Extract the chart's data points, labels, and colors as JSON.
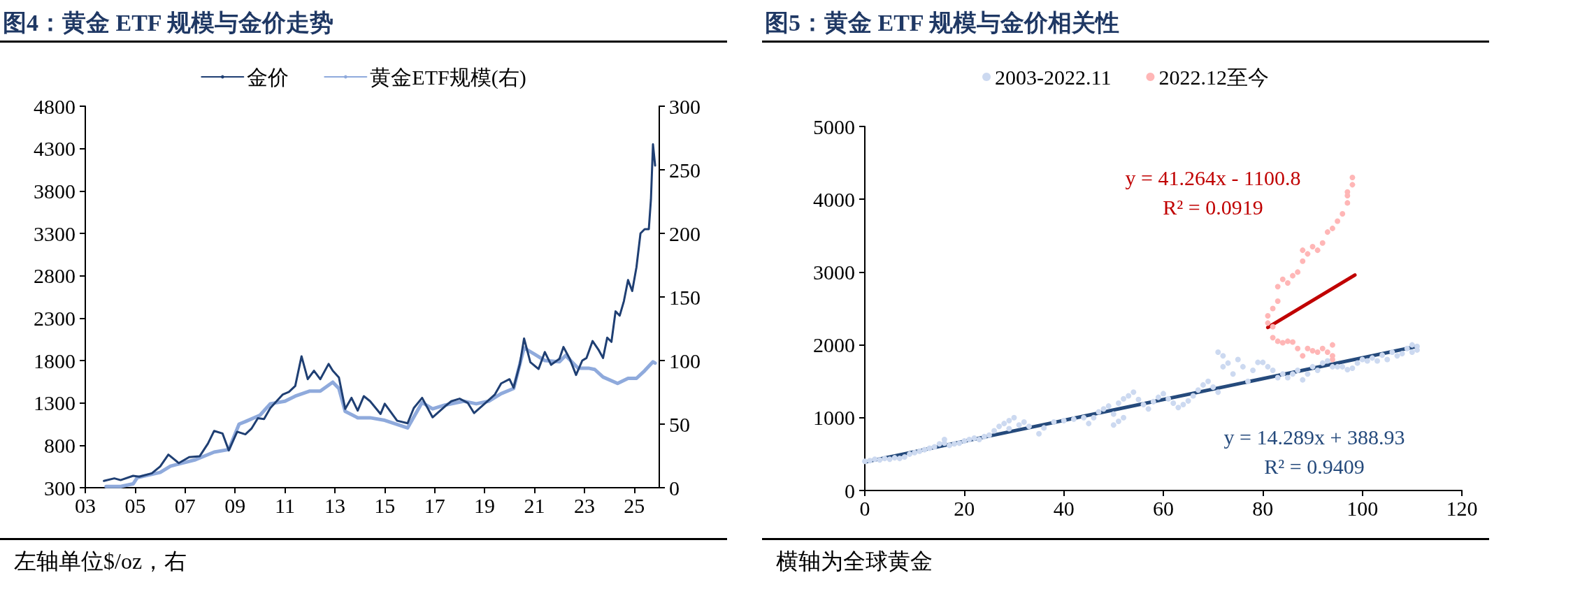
{
  "chart_data": [
    {
      "type": "line",
      "title": "图4：黄金 ETF 规模与金价走势",
      "legend": "top",
      "marker": "none",
      "grid": false,
      "annotations": [
        "左轴单位$/oz，右"
      ],
      "xlim": [
        "2003-01",
        "2026-01"
      ],
      "xticks": [
        {
          "value": "2003",
          "label": "03"
        },
        {
          "value": "2005",
          "label": "05"
        },
        {
          "value": "2007",
          "label": "07"
        },
        {
          "value": "2009",
          "label": "09"
        },
        {
          "value": "2011",
          "label": "11"
        },
        {
          "value": "2013",
          "label": "13"
        },
        {
          "value": "2015",
          "label": "15"
        },
        {
          "value": "2017",
          "label": "17"
        },
        {
          "value": "2019",
          "label": "19"
        },
        {
          "value": "2021",
          "label": "21"
        },
        {
          "value": "2023",
          "label": "23"
        },
        {
          "value": "2025",
          "label": "25"
        }
      ],
      "ylim": [
        300,
        4800
      ],
      "yticks": [
        300,
        800,
        1300,
        1800,
        2300,
        2800,
        3300,
        3800,
        4300,
        4800
      ],
      "y2lim": [
        0,
        300
      ],
      "y2ticks": [
        0,
        50,
        100,
        150,
        200,
        250,
        300
      ],
      "series": [
        {
          "name": "金价",
          "color": "#1f3f73",
          "x": [
            "2003-10",
            "2004-03",
            "2004-06",
            "2004-12",
            "2005-03",
            "2005-09",
            "2006-01",
            "2006-05",
            "2006-10",
            "2007-03",
            "2007-08",
            "2007-12",
            "2008-03",
            "2008-07",
            "2008-10",
            "2009-02",
            "2009-06",
            "2009-09",
            "2009-12",
            "2010-03",
            "2010-06",
            "2010-12",
            "2011-03",
            "2011-06",
            "2011-09",
            "2011-12",
            "2012-03",
            "2012-06",
            "2012-10",
            "2012-12",
            "2013-03",
            "2013-06",
            "2013-09",
            "2013-12",
            "2014-03",
            "2014-06",
            "2014-11",
            "2015-01",
            "2015-07",
            "2015-12",
            "2016-03",
            "2016-07",
            "2016-12",
            "2017-06",
            "2017-09",
            "2018-01",
            "2018-05",
            "2018-08",
            "2019-01",
            "2019-06",
            "2019-09",
            "2020-01",
            "2020-03",
            "2020-06",
            "2020-08",
            "2020-11",
            "2021-03",
            "2021-06",
            "2021-09",
            "2022-01",
            "2022-03",
            "2022-06",
            "2022-09",
            "2022-12",
            "2023-02",
            "2023-05",
            "2023-08",
            "2023-10",
            "2023-12",
            "2024-02",
            "2024-04",
            "2024-06",
            "2024-08",
            "2024-10",
            "2024-12",
            "2025-02",
            "2025-04",
            "2025-06",
            "2025-08",
            "2025-09",
            "2025-10",
            "2025-11"
          ],
          "values": [
            380,
            410,
            390,
            440,
            430,
            470,
            550,
            690,
            590,
            660,
            670,
            820,
            970,
            940,
            740,
            960,
            930,
            1000,
            1120,
            1110,
            1240,
            1400,
            1430,
            1500,
            1850,
            1580,
            1680,
            1580,
            1760,
            1680,
            1600,
            1230,
            1360,
            1210,
            1380,
            1320,
            1170,
            1290,
            1090,
            1060,
            1240,
            1360,
            1130,
            1260,
            1320,
            1350,
            1300,
            1180,
            1290,
            1400,
            1530,
            1580,
            1480,
            1760,
            2060,
            1780,
            1700,
            1900,
            1750,
            1820,
            1960,
            1820,
            1630,
            1800,
            1830,
            2030,
            1920,
            1830,
            2070,
            2020,
            2380,
            2330,
            2500,
            2750,
            2620,
            2900,
            3300,
            3350,
            3350,
            3700,
            4350,
            4100
          ]
        },
        {
          "name": "黄金ETF规模(右)",
          "color": "#8faadc",
          "axis": "y2",
          "x": [
            "2003-11",
            "2004-06",
            "2004-12",
            "2005-02",
            "2006-01",
            "2006-06",
            "2007-06",
            "2008-03",
            "2008-10",
            "2009-03",
            "2009-06",
            "2010-01",
            "2010-06",
            "2011-01",
            "2011-06",
            "2012-01",
            "2012-06",
            "2012-12",
            "2013-03",
            "2013-06",
            "2013-12",
            "2014-06",
            "2015-01",
            "2015-12",
            "2016-07",
            "2016-12",
            "2017-06",
            "2018-03",
            "2018-09",
            "2019-03",
            "2019-09",
            "2020-03",
            "2020-08",
            "2021-01",
            "2021-06",
            "2022-01",
            "2022-04",
            "2022-10",
            "2023-03",
            "2023-06",
            "2023-10",
            "2024-05",
            "2024-10",
            "2025-02",
            "2025-06",
            "2025-10",
            "2025-11"
          ],
          "values": [
            1,
            1,
            3,
            8,
            12,
            17,
            22,
            28,
            30,
            50,
            52,
            57,
            66,
            68,
            72,
            76,
            76,
            83,
            78,
            60,
            55,
            55,
            53,
            47,
            67,
            62,
            65,
            68,
            66,
            68,
            74,
            78,
            110,
            105,
            100,
            99,
            104,
            94,
            94,
            93,
            87,
            82,
            86,
            86,
            92,
            99,
            98
          ]
        }
      ]
    },
    {
      "type": "scatter",
      "title": "图5：黄金 ETF 规模与金价相关性",
      "legend": "top",
      "marker": "circle",
      "grid": false,
      "annotations": [
        "横轴为全球黄金",
        "y = 41.264x - 1100.8",
        "R² = 0.0919",
        "y = 14.289x + 388.93",
        "R² = 0.9409"
      ],
      "xlim": [
        0,
        120
      ],
      "xticks": [
        0,
        20,
        40,
        60,
        80,
        100,
        120
      ],
      "ylim": [
        0,
        5000
      ],
      "yticks": [
        0,
        1000,
        2000,
        3000,
        4000,
        5000
      ],
      "series": [
        {
          "name": "2003-2022.11",
          "color": "#ccd9f0",
          "x": [
            0,
            1,
            2,
            3,
            4,
            5,
            6,
            7,
            8,
            9,
            10,
            11,
            12,
            13,
            14,
            15,
            16,
            16,
            17,
            18,
            19,
            20,
            21,
            22,
            23,
            24,
            25,
            26,
            27,
            28,
            29,
            30,
            29,
            31,
            32,
            33,
            35,
            36,
            38,
            40,
            42,
            44,
            45,
            46,
            47,
            48,
            49,
            50,
            50,
            51,
            52,
            51,
            52,
            53,
            54,
            55,
            56,
            57,
            58,
            59,
            60,
            61,
            62,
            63,
            64,
            65,
            66,
            67,
            68,
            69,
            70,
            71,
            72,
            71,
            72,
            73,
            74,
            75,
            76,
            77,
            78,
            79,
            80,
            81,
            82,
            83,
            84,
            85,
            86,
            87,
            88,
            89,
            90,
            91,
            92,
            93,
            94,
            95,
            96,
            97,
            98,
            99,
            100,
            101,
            102,
            103,
            104,
            105,
            106,
            107,
            108,
            109,
            110,
            111,
            111,
            110
          ],
          "values": [
            400,
            410,
            430,
            420,
            440,
            430,
            450,
            440,
            460,
            500,
            520,
            540,
            560,
            580,
            600,
            640,
            700,
            650,
            620,
            640,
            650,
            680,
            700,
            720,
            700,
            740,
            760,
            820,
            880,
            920,
            960,
            1000,
            850,
            900,
            940,
            880,
            780,
            860,
            940,
            960,
            980,
            1000,
            920,
            1000,
            1080,
            1120,
            1160,
            1050,
            900,
            950,
            1000,
            1200,
            1260,
            1300,
            1350,
            1250,
            1180,
            1120,
            1220,
            1280,
            1330,
            1260,
            1200,
            1140,
            1180,
            1230,
            1300,
            1380,
            1450,
            1500,
            1420,
            1350,
            1700,
            1900,
            1850,
            1750,
            1600,
            1800,
            1700,
            1500,
            1650,
            1760,
            1760,
            1700,
            1650,
            1550,
            1600,
            1550,
            1600,
            1650,
            1520,
            1600,
            1700,
            1650,
            1750,
            1780,
            1700,
            1700,
            1700,
            1660,
            1680,
            1750,
            1800,
            1780,
            1820,
            1780,
            1860,
            1800,
            1900,
            1850,
            1880,
            1950,
            1900,
            1930,
            1980,
            2000
          ]
        },
        {
          "name": "2022.12至今",
          "color": "#ffb6b6",
          "x": [
            81,
            81,
            82,
            82,
            83,
            84,
            85,
            86,
            87,
            88,
            89,
            90,
            91,
            92,
            93,
            94,
            94,
            94,
            82,
            83,
            83,
            84,
            85,
            86,
            87,
            88,
            88,
            89,
            90,
            91,
            92,
            93,
            94,
            95,
            96,
            97,
            97,
            98,
            98,
            97
          ],
          "values": [
            2300,
            2400,
            2250,
            2100,
            2050,
            2030,
            2050,
            2040,
            1950,
            1850,
            1950,
            1920,
            1900,
            1950,
            1900,
            2000,
            1850,
            1800,
            2500,
            2600,
            2800,
            2900,
            2850,
            2950,
            3000,
            3150,
            3300,
            3250,
            3350,
            3300,
            3400,
            3550,
            3600,
            3700,
            3800,
            3950,
            4100,
            4200,
            4300,
            4050
          ]
        },
        {
          "type": "line",
          "marker": "none",
          "color": "#254a7c",
          "x": [
            0,
            111
          ],
          "values": [
            390,
            1980
          ]
        },
        {
          "type": "line",
          "marker": "none",
          "color": "#c00000",
          "x": [
            81,
            98.5
          ],
          "values": [
            2240,
            2960
          ]
        }
      ]
    }
  ]
}
